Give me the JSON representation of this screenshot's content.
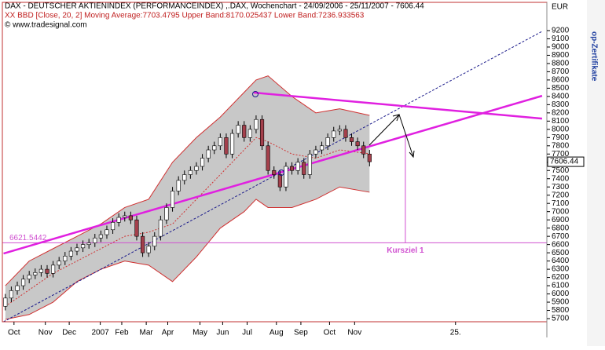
{
  "chart_data": {
    "type": "candlestick",
    "title": "DAX - DEUTSCHER AKTIENINDEX (PERFORMANCEINDEX) ,.DAX, Wochenchart - 24/09/2006 - 25/11/2007 - 7606.44",
    "subtitle": "XX BBD [Close, 20, 2] Moving Average:7703.4795 Upper Band:8170.025437 Lower Band:7236.933563",
    "source": "© www.tradesignal.com",
    "y_axis_label": "EUR",
    "side_label": "op-Zertifikate",
    "xlim": [
      -0.5,
      90.7
    ],
    "xticks": [
      {
        "value": 1.45,
        "label": "Oct"
      },
      {
        "value": 6.7,
        "label": "Nov"
      },
      {
        "value": 10.7,
        "label": "Dec"
      },
      {
        "value": 15.9,
        "label": "2007"
      },
      {
        "value": 19.5,
        "label": "Feb"
      },
      {
        "value": 23.6,
        "label": "Mar"
      },
      {
        "value": 27.2,
        "label": "Apr"
      },
      {
        "value": 32.6,
        "label": "May"
      },
      {
        "value": 36.4,
        "label": "Jun"
      },
      {
        "value": 40.5,
        "label": "Jul"
      },
      {
        "value": 45.4,
        "label": "Aug"
      },
      {
        "value": 49.5,
        "label": "Sep"
      },
      {
        "value": 54.3,
        "label": "Oct"
      },
      {
        "value": 58.5,
        "label": "Nov"
      },
      {
        "value": 75.4,
        "label": "25."
      }
    ],
    "ylim": [
      5662,
      9543
    ],
    "yticks": [
      5700,
      5800,
      5900,
      6000,
      6100,
      6200,
      6300,
      6400,
      6500,
      6600,
      6700,
      6800,
      6900,
      7000,
      7100,
      7200,
      7300,
      7400,
      7500,
      7600,
      7700,
      7800,
      7900,
      8000,
      8100,
      8200,
      8300,
      8400,
      8500,
      8600,
      8700,
      8800,
      8900,
      9000,
      9100,
      9200
    ],
    "up_color": "#ffffff",
    "down_color": "#a4404c",
    "open": [
      5850,
      5950,
      6040,
      6100,
      6180,
      6230,
      6260,
      6300,
      6250,
      6350,
      6400,
      6460,
      6520,
      6560,
      6600,
      6620,
      6680,
      6720,
      6780,
      6870,
      6930,
      6950,
      6900,
      6700,
      6500,
      6580,
      6700,
      6900,
      7050,
      7250,
      7380,
      7450,
      7500,
      7550,
      7650,
      7750,
      7800,
      7900,
      7700,
      7950,
      8050,
      7900,
      8000,
      8120,
      7800,
      7500,
      7450,
      7300,
      7550,
      7500,
      7600,
      7450,
      7700,
      7750,
      7800,
      7900,
      7980,
      8000,
      7900,
      7850,
      7800,
      7700
    ],
    "high": [
      6000,
      6090,
      6150,
      6230,
      6280,
      6310,
      6350,
      6350,
      6400,
      6450,
      6510,
      6570,
      6610,
      6650,
      6670,
      6730,
      6770,
      6830,
      6920,
      6980,
      7000,
      7000,
      6950,
      6750,
      6630,
      6750,
      6950,
      7100,
      7300,
      7430,
      7500,
      7550,
      7600,
      7700,
      7800,
      7850,
      7950,
      7950,
      8000,
      8100,
      8100,
      8050,
      8170,
      8170,
      7850,
      7550,
      7500,
      7600,
      7600,
      7650,
      7650,
      7750,
      7800,
      7850,
      7950,
      8030,
      8050,
      8050,
      7950,
      7900,
      7850,
      7750
    ],
    "low": [
      5800,
      5900,
      5990,
      6050,
      6130,
      6180,
      6210,
      6200,
      6200,
      6300,
      6350,
      6410,
      6470,
      6510,
      6550,
      6570,
      6630,
      6670,
      6730,
      6820,
      6880,
      6850,
      6650,
      6450,
      6450,
      6530,
      6650,
      6850,
      7000,
      7200,
      7330,
      7400,
      7450,
      7500,
      7600,
      7700,
      7750,
      7650,
      7650,
      7900,
      7850,
      7850,
      7950,
      7750,
      7450,
      7400,
      7250,
      7250,
      7450,
      7450,
      7400,
      7400,
      7650,
      7700,
      7750,
      7850,
      7930,
      7850,
      7800,
      7750,
      7650,
      7550
    ],
    "close": [
      5950,
      6040,
      6100,
      6180,
      6230,
      6260,
      6300,
      6250,
      6350,
      6400,
      6460,
      6520,
      6560,
      6600,
      6620,
      6680,
      6720,
      6780,
      6870,
      6930,
      6950,
      6900,
      6700,
      6500,
      6580,
      6700,
      6900,
      7050,
      7250,
      7380,
      7450,
      7500,
      7550,
      7650,
      7750,
      7800,
      7900,
      7700,
      7950,
      8050,
      7900,
      8000,
      8120,
      7800,
      7500,
      7450,
      7300,
      7550,
      7500,
      7600,
      7450,
      7700,
      7750,
      7800,
      7900,
      7980,
      8000,
      7900,
      7850,
      7800,
      7700,
      7606.44
    ],
    "bands": {
      "x": [
        0,
        4,
        8,
        12,
        16,
        20,
        24,
        28,
        32,
        36,
        40,
        42,
        44,
        48,
        52,
        56,
        61
      ],
      "upper": [
        6100,
        6400,
        6550,
        6700,
        6850,
        7050,
        7150,
        7600,
        7900,
        8150,
        8450,
        8600,
        8650,
        8400,
        8200,
        8250,
        8170
      ],
      "middle": [
        5850,
        6050,
        6250,
        6400,
        6550,
        6700,
        6750,
        6850,
        7150,
        7450,
        7750,
        7900,
        7850,
        7700,
        7650,
        7750,
        7703
      ],
      "lower": [
        5690,
        5750,
        5900,
        6150,
        6300,
        6400,
        6350,
        6150,
        6450,
        6800,
        7000,
        7150,
        7050,
        7050,
        7150,
        7300,
        7236
      ],
      "band_color": "#c8c8c8",
      "line_color": "#d03030"
    },
    "trend_lines": [
      {
        "x": [
          -0.3,
          89.9
        ],
        "y": [
          5662,
          9190
        ],
        "color": "#1a1a8a",
        "dashed": true
      },
      {
        "x": [
          -0.3,
          89.9
        ],
        "y": [
          6491,
          8407
        ],
        "color": "#e020e0",
        "dashed": false
      },
      {
        "x": [
          41.6,
          89.9
        ],
        "y": [
          8446,
          8131
        ],
        "color": "#e020e0",
        "dashed": false
      }
    ],
    "level": 6621.5442,
    "level_color": "#d050d0",
    "target": {
      "label": "Kursziel 1",
      "x": 67,
      "from": 7950
    }
  }
}
